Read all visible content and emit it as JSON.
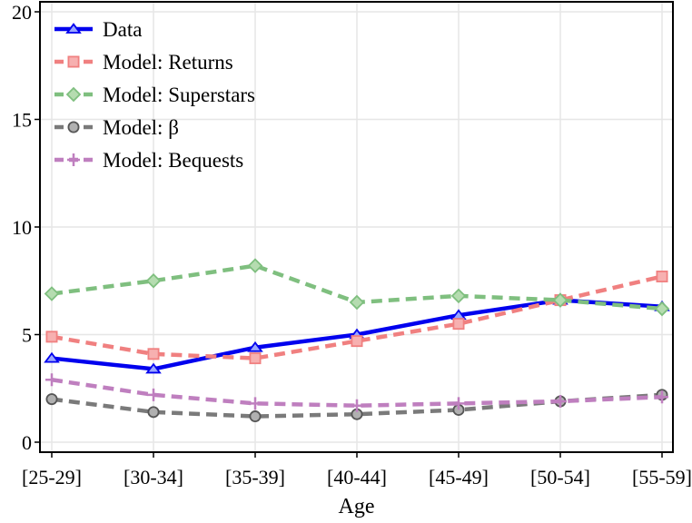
{
  "chart_data": {
    "type": "line",
    "title": "",
    "xlabel": "Age",
    "ylabel": "",
    "categories": [
      "[25-29]",
      "[30-34]",
      "[35-39]",
      "[40-44]",
      "[45-49]",
      "[50-54]",
      "[55-59]"
    ],
    "ylim": [
      0,
      20
    ],
    "yticks": [
      0,
      5,
      10,
      15,
      20
    ],
    "grid": true,
    "legend_position": "top-left",
    "series": [
      {
        "name": "Data",
        "color": "#0000ee",
        "fill": "#9aa6ff",
        "marker": "triangle",
        "dashed": false,
        "values": [
          3.9,
          3.4,
          4.4,
          5.0,
          5.9,
          6.6,
          6.3
        ]
      },
      {
        "name": "Model: Returns",
        "color": "#f08080",
        "fill": "#f7b0b0",
        "marker": "square",
        "dashed": true,
        "values": [
          4.9,
          4.1,
          3.9,
          4.7,
          5.5,
          6.6,
          7.7
        ]
      },
      {
        "name": "Model: Superstars",
        "color": "#7fbf7f",
        "fill": "#b5dcb0",
        "marker": "diamond",
        "dashed": true,
        "values": [
          6.9,
          7.5,
          8.2,
          6.5,
          6.8,
          6.6,
          6.2
        ]
      },
      {
        "name": "Model: β",
        "color": "#7a7a7a",
        "fill": "#b0b0b0",
        "marker": "circle",
        "dashed": true,
        "values": [
          2.0,
          1.4,
          1.2,
          1.3,
          1.5,
          1.9,
          2.2
        ]
      },
      {
        "name": "Model: Bequests",
        "color": "#bf7fbf",
        "fill": "#bf7fbf",
        "marker": "plus",
        "dashed": true,
        "values": [
          2.9,
          2.2,
          1.8,
          1.7,
          1.8,
          1.9,
          2.1
        ]
      }
    ]
  }
}
